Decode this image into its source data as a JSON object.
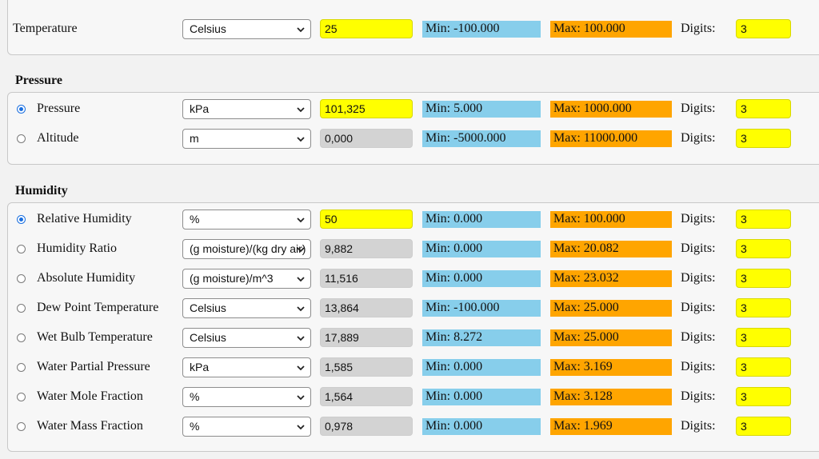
{
  "temperature": {
    "label": "Temperature",
    "unit": "Celsius",
    "value": "25",
    "min": "Min: -100.000",
    "max": "Max: 100.000",
    "digits_label": "Digits:",
    "digits": "3"
  },
  "pressure": {
    "title": "Pressure",
    "rows": [
      {
        "label": "Pressure",
        "selected": true,
        "unit": "kPa",
        "value": "101,325",
        "editable": true,
        "min": "Min: 5.000",
        "max": "Max: 1000.000",
        "digits_label": "Digits:",
        "digits": "3"
      },
      {
        "label": "Altitude",
        "selected": false,
        "unit": "m",
        "value": "0,000",
        "editable": false,
        "min": "Min: -5000.000",
        "max": "Max: 11000.000",
        "digits_label": "Digits:",
        "digits": "3"
      }
    ]
  },
  "humidity": {
    "title": "Humidity",
    "rows": [
      {
        "label": "Relative Humidity",
        "selected": true,
        "unit": "%",
        "value": "50",
        "editable": true,
        "min": "Min: 0.000",
        "max": "Max: 100.000",
        "digits_label": "Digits:",
        "digits": "3"
      },
      {
        "label": "Humidity Ratio",
        "selected": false,
        "unit": "(g moisture)/(kg dry air)",
        "value": "9,882",
        "editable": false,
        "min": "Min: 0.000",
        "max": "Max: 20.082",
        "digits_label": "Digits:",
        "digits": "3"
      },
      {
        "label": "Absolute Humidity",
        "selected": false,
        "unit": "(g moisture)/m^3",
        "value": "11,516",
        "editable": false,
        "min": "Min: 0.000",
        "max": "Max: 23.032",
        "digits_label": "Digits:",
        "digits": "3"
      },
      {
        "label": "Dew Point Temperature",
        "selected": false,
        "unit": "Celsius",
        "value": "13,864",
        "editable": false,
        "min": "Min: -100.000",
        "max": "Max: 25.000",
        "digits_label": "Digits:",
        "digits": "3"
      },
      {
        "label": "Wet Bulb Temperature",
        "selected": false,
        "unit": "Celsius",
        "value": "17,889",
        "editable": false,
        "min": "Min: 8.272",
        "max": "Max: 25.000",
        "digits_label": "Digits:",
        "digits": "3"
      },
      {
        "label": "Water Partial Pressure",
        "selected": false,
        "unit": "kPa",
        "value": "1,585",
        "editable": false,
        "min": "Min: 0.000",
        "max": "Max: 3.169",
        "digits_label": "Digits:",
        "digits": "3"
      },
      {
        "label": "Water Mole Fraction",
        "selected": false,
        "unit": "%",
        "value": "1,564",
        "editable": false,
        "min": "Min: 0.000",
        "max": "Max: 3.128",
        "digits_label": "Digits:",
        "digits": "3"
      },
      {
        "label": "Water Mass Fraction",
        "selected": false,
        "unit": "%",
        "value": "0,978",
        "editable": false,
        "min": "Min: 0.000",
        "max": "Max: 1.969",
        "digits_label": "Digits:",
        "digits": "3"
      }
    ]
  }
}
